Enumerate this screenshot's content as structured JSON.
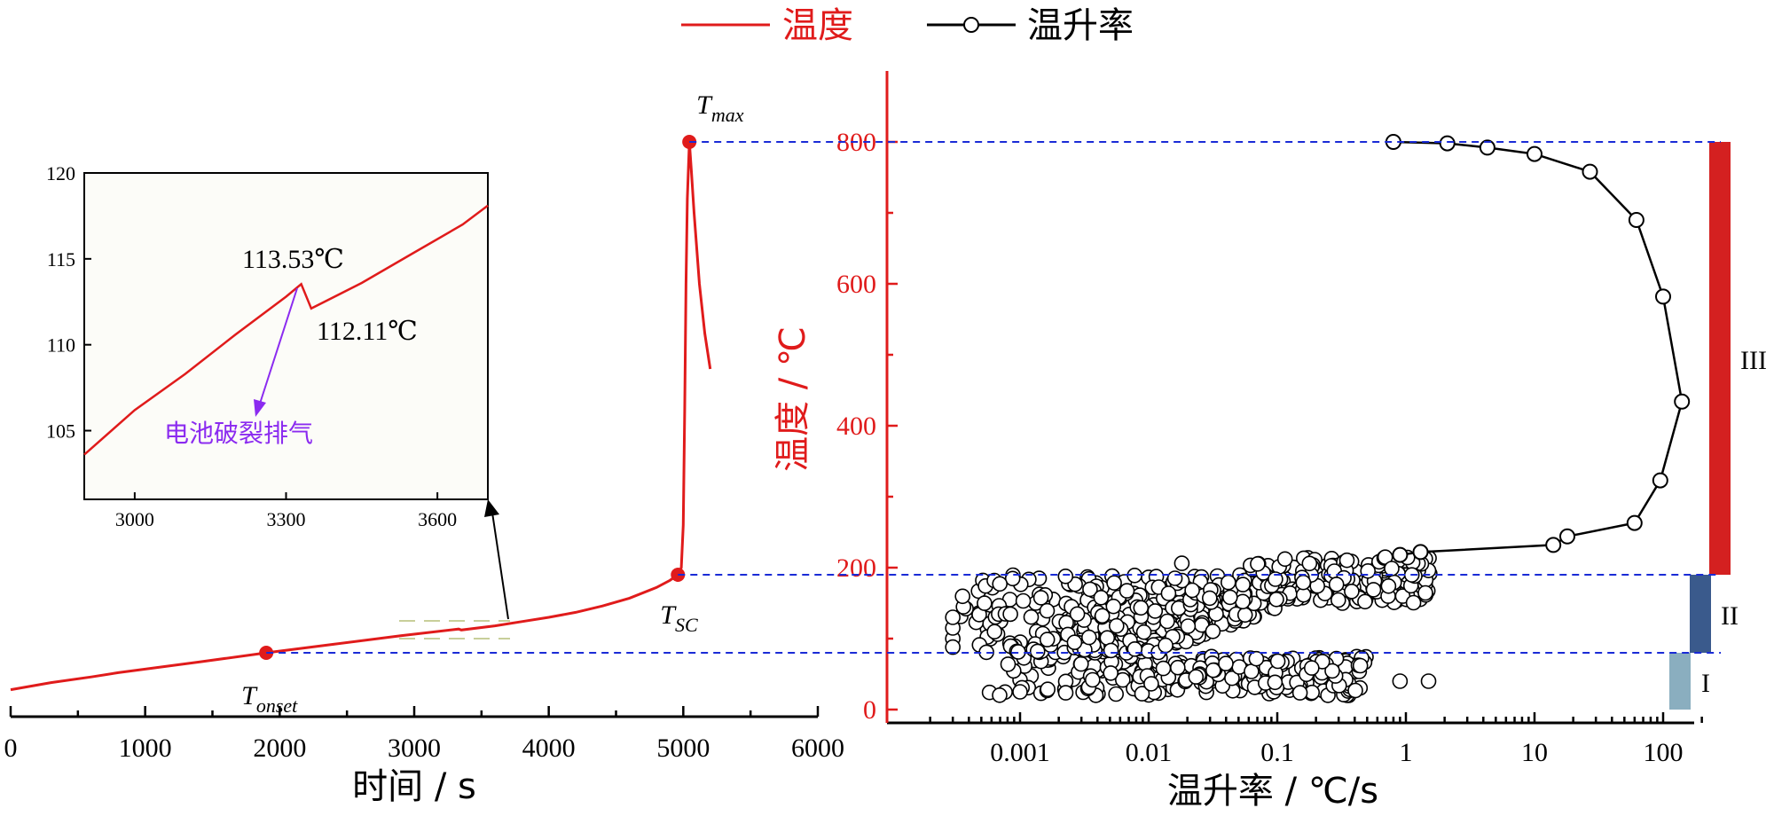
{
  "legend": {
    "temp_label": "温度",
    "rate_label": "温升率",
    "temp_color": "#e01b1b",
    "rate_color": "#000000"
  },
  "chart_data": [
    {
      "type": "line",
      "name": "left-temperature-vs-time",
      "xlabel": "时间 / s",
      "xlim": [
        0,
        6000
      ],
      "xticks": [
        "0",
        "1000",
        "2000",
        "3000",
        "4000",
        "5000",
        "6000"
      ],
      "ylim": [
        0,
        900
      ],
      "series": [
        {
          "name": "温度",
          "color": "#e01b1b",
          "x": [
            0,
            300,
            600,
            800,
            1000,
            1400,
            1900,
            2400,
            2900,
            3330,
            3350,
            3600,
            3800,
            4000,
            4200,
            4400,
            4600,
            4800,
            4900,
            4960,
            4985,
            5000,
            5010,
            5020,
            5030,
            5045,
            5060,
            5080,
            5120,
            5160,
            5200
          ],
          "y": [
            28,
            38,
            46,
            52,
            57,
            67,
            80,
            92,
            104,
            113.53,
            112.11,
            118,
            124,
            130,
            137,
            146,
            157,
            172,
            182,
            190,
            200,
            260,
            420,
            600,
            720,
            800,
            760,
            700,
            600,
            530,
            480
          ]
        }
      ],
      "points": [
        {
          "label": "T",
          "sub": "onset",
          "x": 1900,
          "y": 80
        },
        {
          "label": "T",
          "sub": "SC",
          "x": 4960,
          "y": 190
        },
        {
          "label": "T",
          "sub": "max",
          "x": 5045,
          "y": 800
        }
      ],
      "inset": {
        "xlim": [
          2900,
          3700
        ],
        "ylim": [
          101,
          120
        ],
        "xticks": [
          "3000",
          "3300",
          "3600"
        ],
        "yticks": [
          "105",
          "110",
          "115",
          "120"
        ],
        "x": [
          2900,
          3000,
          3100,
          3200,
          3300,
          3330,
          3350,
          3450,
          3550,
          3650,
          3700
        ],
        "y": [
          103.6,
          106.2,
          108.3,
          110.6,
          112.8,
          113.53,
          112.11,
          113.6,
          115.3,
          117.0,
          118.1
        ],
        "peak_label": "113.53℃",
        "valley_label": "112.11℃",
        "event_label": "电池破裂排气",
        "event_color": "#8b2bf0"
      }
    },
    {
      "type": "scatter",
      "name": "right-temperature-vs-rate",
      "xlabel": "温升率 / ℃/s",
      "ylabel": "温度 / ℃",
      "x_scale": "log",
      "xlim": [
        0.00015,
        200
      ],
      "xticks": [
        "0.001",
        "0.01",
        "0.1",
        "1",
        "10",
        "100"
      ],
      "ylim": [
        -10,
        880
      ],
      "yticks": [
        "0",
        "200",
        "400",
        "600",
        "800"
      ],
      "series": [
        {
          "name": "温升率",
          "color": "#000000",
          "x": [
            0.8,
            2.1,
            4.3,
            10,
            27,
            62,
            100,
            140,
            95,
            60,
            18,
            14,
            1.3,
            0.9
          ],
          "y": [
            800,
            798,
            792,
            783,
            758,
            690,
            582,
            434,
            323,
            263,
            244,
            232,
            222,
            218
          ]
        }
      ],
      "regions": [
        {
          "label": "I",
          "y_from": 0,
          "y_to": 80,
          "color": "#8aaebf"
        },
        {
          "label": "II",
          "y_from": 80,
          "y_to": 190,
          "color": "#3a5a8c"
        },
        {
          "label": "III",
          "y_from": 190,
          "y_to": 800,
          "color": "#d42020"
        }
      ],
      "reference_lines_y": [
        80,
        190,
        800
      ]
    }
  ]
}
